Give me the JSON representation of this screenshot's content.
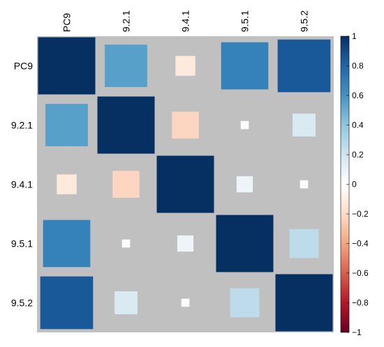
{
  "chart_data": {
    "type": "heatmap",
    "style": "square-size correlation matrix",
    "variables": [
      "PC9",
      "9.2.1",
      "9.4.1",
      "9.5.1",
      "9.5.2"
    ],
    "matrix": [
      [
        1.0,
        0.55,
        -0.12,
        0.68,
        0.85
      ],
      [
        0.55,
        1.0,
        -0.22,
        0.02,
        0.16
      ],
      [
        -0.12,
        -0.22,
        1.0,
        0.08,
        0.02
      ],
      [
        0.68,
        0.02,
        0.08,
        1.0,
        0.26
      ],
      [
        0.85,
        0.16,
        0.02,
        0.26,
        1.0
      ]
    ],
    "background_color": "#c0c0c0",
    "colorbar": {
      "range": [
        -1,
        1
      ],
      "ticks": [
        "1",
        "0.8",
        "0.6",
        "0.4",
        "0.2",
        "0",
        "−0.2",
        "−0.4",
        "−0.6",
        "−0.8",
        "−1"
      ],
      "tick_values": [
        1,
        0.8,
        0.6,
        0.4,
        0.2,
        0,
        -0.2,
        -0.4,
        -0.6,
        -0.8,
        -1
      ],
      "placement": "right",
      "colors": [
        "#67001f",
        "#b2182b",
        "#d6604d",
        "#f4a582",
        "#fddbc7",
        "#ffffff",
        "#d1e5f0",
        "#92c5de",
        "#4393c3",
        "#2166ac",
        "#053061"
      ]
    }
  }
}
